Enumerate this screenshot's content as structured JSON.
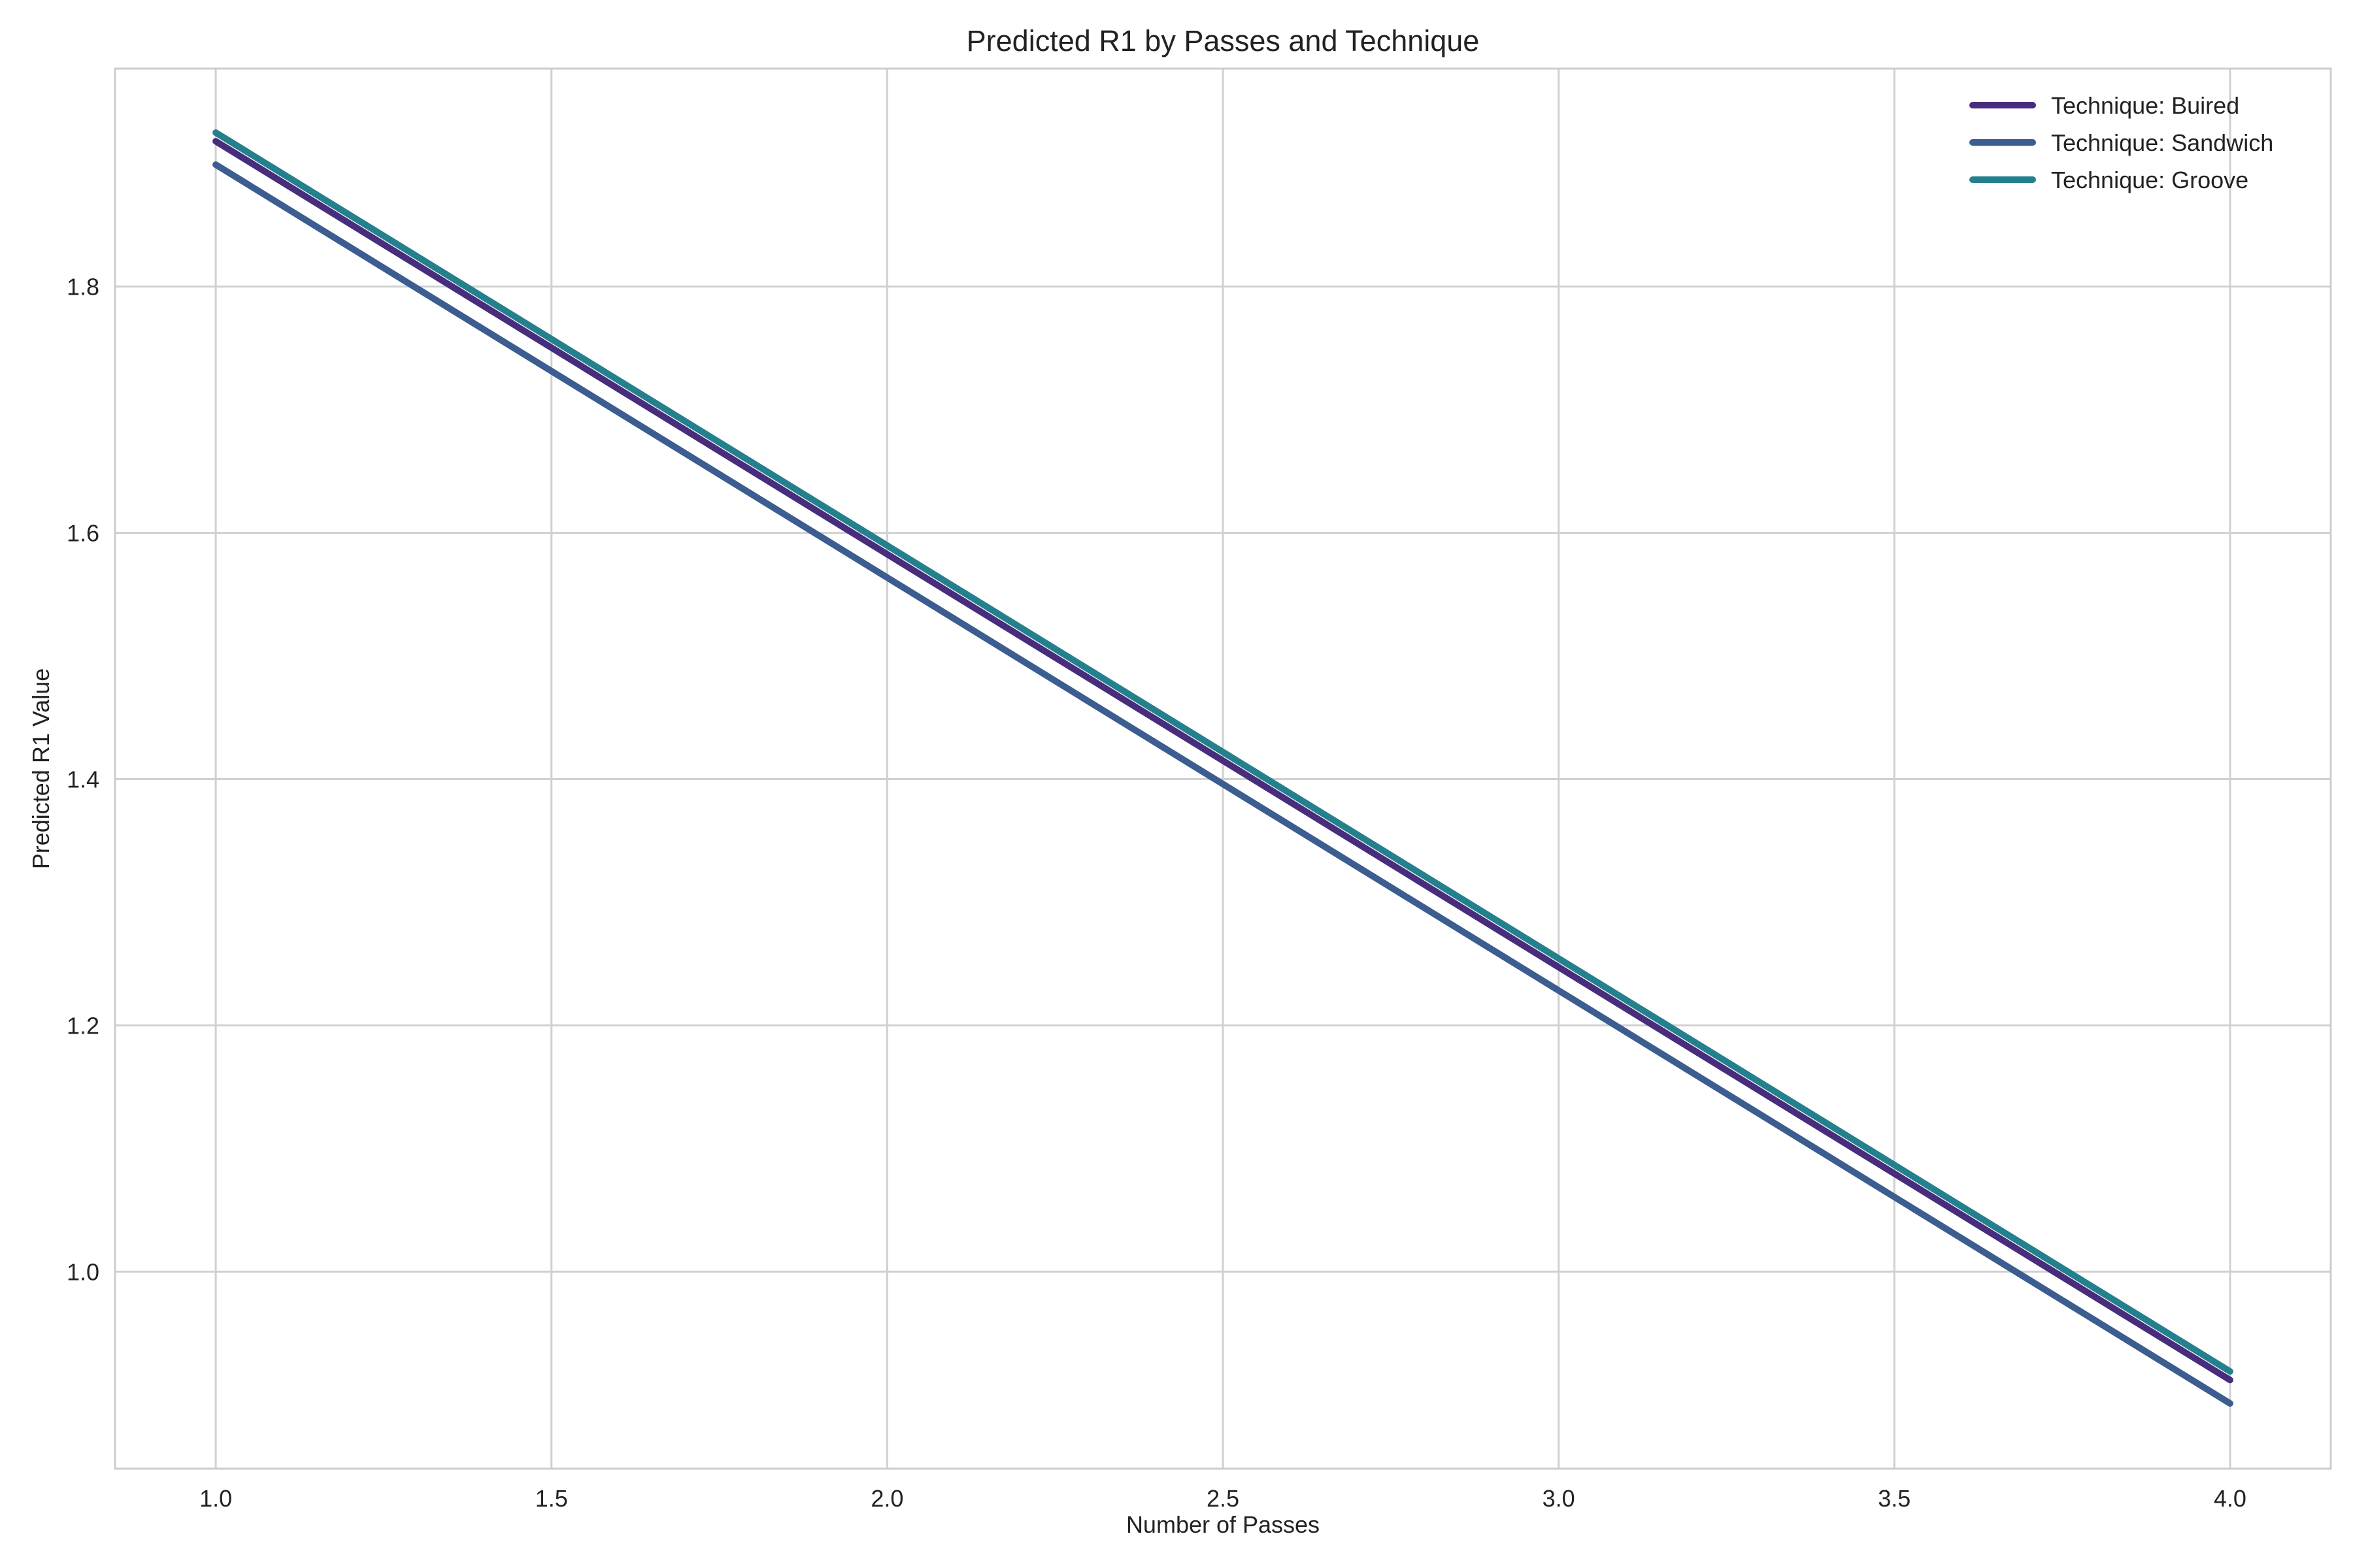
{
  "chart_data": {
    "type": "line",
    "title": "Predicted R1 by Passes and Technique",
    "xlabel": "Number of Passes",
    "ylabel": "Predicted R1 Value",
    "xlim": [
      0.85,
      4.15
    ],
    "ylim": [
      0.84,
      1.977
    ],
    "x_ticks": [
      "1.0",
      "1.5",
      "2.0",
      "2.5",
      "3.0",
      "3.5",
      "4.0"
    ],
    "y_ticks": [
      "1.0",
      "1.2",
      "1.4",
      "1.6",
      "1.8"
    ],
    "grid": true,
    "legend_position": "top-right",
    "series": [
      {
        "name": "Technique: Buired",
        "color": "#472d7b",
        "x": [
          1,
          4
        ],
        "y": [
          1.918,
          0.912
        ]
      },
      {
        "name": "Technique: Sandwich",
        "color": "#3b5d8f",
        "x": [
          1,
          4
        ],
        "y": [
          1.899,
          0.893
        ]
      },
      {
        "name": "Technique: Groove",
        "color": "#25808e",
        "x": [
          1,
          4
        ],
        "y": [
          1.925,
          0.919
        ]
      }
    ]
  }
}
